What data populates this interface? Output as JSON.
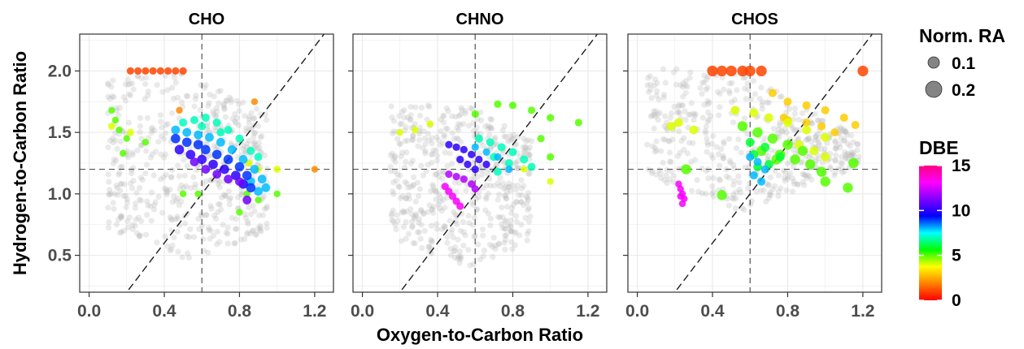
{
  "chart_data": {
    "type": "scatter",
    "xlabel": "Oxygen-to-Carbon Ratio",
    "ylabel": "Hydrogen-to-Carbon Ratio",
    "xlim": [
      -0.05,
      1.3
    ],
    "ylim": [
      0.2,
      2.3
    ],
    "x_ticks": [
      "0.0",
      "0.4",
      "0.8",
      "1.2"
    ],
    "y_ticks": [
      "0.5",
      "1.0",
      "1.5",
      "2.0"
    ],
    "grid": true,
    "reference_lines": {
      "vertical_x": 0.6,
      "horizontal_y": 1.2,
      "diagonal": "H/C = 2*(O/C) - 0.2"
    },
    "panels": [
      {
        "title": "CHO",
        "series": [
          {
            "dbe": 1,
            "size": 0.04,
            "points": [
              [
                0.22,
                2.0
              ],
              [
                0.26,
                2.0
              ],
              [
                0.3,
                2.0
              ],
              [
                0.34,
                2.0
              ],
              [
                0.38,
                2.0
              ],
              [
                0.42,
                2.0
              ],
              [
                0.46,
                2.0
              ],
              [
                0.5,
                2.0
              ]
            ]
          },
          {
            "dbe": 5,
            "size": 0.03,
            "points": [
              [
                0.12,
                1.68
              ],
              [
                0.14,
                1.6
              ],
              [
                0.16,
                1.52
              ],
              [
                0.2,
                1.45
              ],
              [
                0.3,
                1.42
              ],
              [
                0.18,
                1.33
              ],
              [
                0.5,
                1.0
              ],
              [
                0.58,
                1.0
              ],
              [
                0.84,
                1.0
              ],
              [
                0.9,
                0.95
              ],
              [
                1.0,
                1.0
              ],
              [
                0.8,
                0.85
              ]
            ]
          },
          {
            "dbe": 4,
            "size": 0.035,
            "points": [
              [
                0.12,
                1.55
              ],
              [
                0.22,
                1.5
              ],
              [
                0.9,
                1.2
              ],
              [
                0.85,
                1.25
              ],
              [
                1.0,
                1.2
              ]
            ]
          },
          {
            "dbe": 2,
            "size": 0.03,
            "points": [
              [
                0.88,
                1.75
              ],
              [
                1.2,
                1.2
              ],
              [
                0.48,
                1.68
              ]
            ]
          },
          {
            "dbe": 7,
            "size": 0.05,
            "points": [
              [
                0.5,
                1.58
              ],
              [
                0.56,
                1.6
              ],
              [
                0.62,
                1.62
              ],
              [
                0.68,
                1.58
              ],
              [
                0.74,
                1.52
              ],
              [
                0.8,
                1.45
              ],
              [
                0.86,
                1.35
              ],
              [
                0.9,
                1.3
              ],
              [
                0.6,
                1.55
              ],
              [
                0.7,
                1.5
              ]
            ]
          },
          {
            "dbe": 8,
            "size": 0.06,
            "points": [
              [
                0.46,
                1.52
              ],
              [
                0.52,
                1.5
              ],
              [
                0.58,
                1.48
              ],
              [
                0.64,
                1.46
              ],
              [
                0.7,
                1.42
              ],
              [
                0.76,
                1.36
              ],
              [
                0.82,
                1.28
              ],
              [
                0.88,
                1.2
              ],
              [
                0.92,
                1.12
              ],
              [
                0.94,
                1.05
              ],
              [
                0.9,
                1.02
              ],
              [
                0.86,
                1.1
              ]
            ]
          },
          {
            "dbe": 9,
            "size": 0.07,
            "points": [
              [
                0.46,
                1.45
              ],
              [
                0.52,
                1.42
              ],
              [
                0.58,
                1.4
              ],
              [
                0.62,
                1.36
              ],
              [
                0.68,
                1.32
              ],
              [
                0.74,
                1.28
              ],
              [
                0.8,
                1.22
              ],
              [
                0.84,
                1.15
              ],
              [
                0.86,
                1.05
              ]
            ]
          },
          {
            "dbe": 10,
            "size": 0.07,
            "points": [
              [
                0.48,
                1.36
              ],
              [
                0.54,
                1.32
              ],
              [
                0.6,
                1.28
              ],
              [
                0.66,
                1.24
              ],
              [
                0.72,
                1.2
              ],
              [
                0.78,
                1.15
              ],
              [
                0.82,
                1.08
              ]
            ]
          },
          {
            "dbe": 11,
            "size": 0.06,
            "points": [
              [
                0.56,
                1.26
              ],
              [
                0.62,
                1.2
              ],
              [
                0.68,
                1.16
              ],
              [
                0.74,
                1.12
              ],
              [
                0.8,
                1.1
              ],
              [
                0.84,
                0.95
              ]
            ]
          }
        ]
      },
      {
        "title": "CHNO",
        "series": [
          {
            "dbe": 4,
            "size": 0.03,
            "points": [
              [
                0.28,
                1.52
              ],
              [
                0.2,
                1.5
              ],
              [
                0.36,
                1.57
              ],
              [
                0.86,
                1.2
              ],
              [
                1.0,
                1.1
              ]
            ]
          },
          {
            "dbe": 5,
            "size": 0.04,
            "points": [
              [
                0.72,
                1.73
              ],
              [
                0.8,
                1.72
              ],
              [
                0.9,
                1.68
              ],
              [
                1.0,
                1.62
              ],
              [
                1.15,
                1.58
              ],
              [
                0.6,
                1.65
              ],
              [
                0.95,
                1.45
              ],
              [
                1.0,
                1.3
              ]
            ]
          },
          {
            "dbe": 7,
            "size": 0.05,
            "points": [
              [
                0.62,
                1.45
              ],
              [
                0.68,
                1.42
              ],
              [
                0.74,
                1.38
              ],
              [
                0.8,
                1.34
              ],
              [
                0.86,
                1.28
              ],
              [
                0.9,
                1.22
              ],
              [
                0.7,
                1.3
              ],
              [
                0.78,
                1.25
              ],
              [
                0.72,
                1.18
              ]
            ]
          },
          {
            "dbe": 8,
            "size": 0.04,
            "points": [
              [
                0.6,
                1.38
              ],
              [
                0.66,
                1.34
              ],
              [
                0.72,
                1.3
              ],
              [
                0.78,
                1.2
              ]
            ]
          },
          {
            "dbe": 10,
            "size": 0.04,
            "points": [
              [
                0.46,
                1.4
              ],
              [
                0.5,
                1.38
              ],
              [
                0.54,
                1.36
              ],
              [
                0.58,
                1.32
              ],
              [
                0.62,
                1.28
              ],
              [
                0.66,
                1.24
              ],
              [
                0.52,
                1.28
              ],
              [
                0.56,
                1.24
              ],
              [
                0.6,
                1.2
              ]
            ]
          },
          {
            "dbe": 12,
            "size": 0.04,
            "points": [
              [
                0.46,
                1.16
              ],
              [
                0.5,
                1.14
              ],
              [
                0.54,
                1.12
              ],
              [
                0.58,
                1.08
              ],
              [
                0.6,
                1.04
              ]
            ]
          },
          {
            "dbe": 13,
            "size": 0.04,
            "points": [
              [
                0.44,
                1.06
              ],
              [
                0.46,
                1.02
              ],
              [
                0.48,
                0.98
              ],
              [
                0.5,
                0.94
              ],
              [
                0.52,
                0.9
              ]
            ]
          }
        ]
      },
      {
        "title": "CHOS",
        "series": [
          {
            "dbe": 1,
            "size": 0.09,
            "points": [
              [
                0.4,
                2.0
              ],
              [
                0.45,
                2.0
              ],
              [
                0.5,
                2.0
              ],
              [
                0.56,
                2.0
              ],
              [
                0.6,
                2.0
              ],
              [
                0.66,
                2.0
              ],
              [
                1.2,
                2.0
              ]
            ]
          },
          {
            "dbe": 3,
            "size": 0.05,
            "points": [
              [
                0.72,
                1.82
              ],
              [
                0.8,
                1.75
              ],
              [
                0.9,
                1.72
              ],
              [
                1.0,
                1.68
              ],
              [
                1.1,
                1.62
              ],
              [
                1.16,
                1.56
              ],
              [
                0.78,
                1.62
              ],
              [
                0.9,
                1.58
              ],
              [
                0.98,
                1.55
              ],
              [
                1.05,
                1.5
              ],
              [
                0.8,
                1.6
              ]
            ]
          },
          {
            "dbe": 4,
            "size": 0.06,
            "points": [
              [
                0.52,
                1.68
              ],
              [
                0.62,
                1.66
              ],
              [
                0.7,
                1.62
              ],
              [
                0.8,
                1.58
              ],
              [
                0.9,
                1.52
              ],
              [
                1.0,
                1.46
              ],
              [
                0.86,
                1.4
              ],
              [
                0.94,
                1.35
              ],
              [
                1.0,
                1.3
              ],
              [
                0.22,
                1.58
              ],
              [
                0.18,
                1.55
              ],
              [
                0.3,
                1.52
              ]
            ]
          },
          {
            "dbe": 5,
            "size": 0.08,
            "points": [
              [
                0.56,
                1.55
              ],
              [
                0.64,
                1.5
              ],
              [
                0.72,
                1.45
              ],
              [
                0.8,
                1.4
              ],
              [
                0.88,
                1.35
              ],
              [
                0.76,
                1.32
              ],
              [
                0.84,
                1.28
              ],
              [
                0.92,
                1.24
              ],
              [
                0.98,
                1.18
              ],
              [
                1.0,
                1.1
              ],
              [
                0.66,
                1.35
              ],
              [
                0.74,
                1.28
              ],
              [
                0.45,
                0.99
              ],
              [
                0.26,
                1.2
              ],
              [
                1.12,
                1.05
              ],
              [
                1.15,
                1.25
              ]
            ]
          },
          {
            "dbe": 6,
            "size": 0.06,
            "points": [
              [
                0.6,
                1.42
              ],
              [
                0.68,
                1.38
              ],
              [
                0.76,
                1.3
              ],
              [
                0.62,
                1.32
              ],
              [
                0.7,
                1.24
              ],
              [
                0.64,
                1.22
              ]
            ]
          },
          {
            "dbe": 8,
            "size": 0.05,
            "points": [
              [
                0.6,
                1.3
              ],
              [
                0.64,
                1.26
              ],
              [
                0.68,
                1.2
              ],
              [
                0.62,
                1.15
              ],
              [
                0.66,
                1.1
              ]
            ]
          },
          {
            "dbe": 13,
            "size": 0.03,
            "points": [
              [
                0.22,
                1.08
              ],
              [
                0.23,
                1.04
              ],
              [
                0.24,
                1.0
              ],
              [
                0.25,
                0.96
              ],
              [
                0.24,
                0.92
              ],
              [
                0.23,
                0.98
              ]
            ]
          }
        ]
      }
    ],
    "legend": {
      "size_title": "Norm. RA",
      "size_entries": [
        {
          "label": "0.1",
          "value": 0.1
        },
        {
          "label": "0.2",
          "value": 0.2
        }
      ],
      "color_title": "DBE",
      "color_ticks": [
        "0",
        "5",
        "10",
        "15"
      ],
      "color_range": [
        0,
        15
      ],
      "colormap": [
        "#ff0000",
        "#ff8000",
        "#ffff00",
        "#00ff00",
        "#00ffff",
        "#0000ff",
        "#8000ff",
        "#ff00ff",
        "#ff0080"
      ]
    },
    "colors": {
      "background_points": "#b3b3b3",
      "panel_border": "#333333",
      "grid": "#ebebeb",
      "reference_line": "#555555",
      "diagonal_line": "#1a1a1a"
    }
  }
}
